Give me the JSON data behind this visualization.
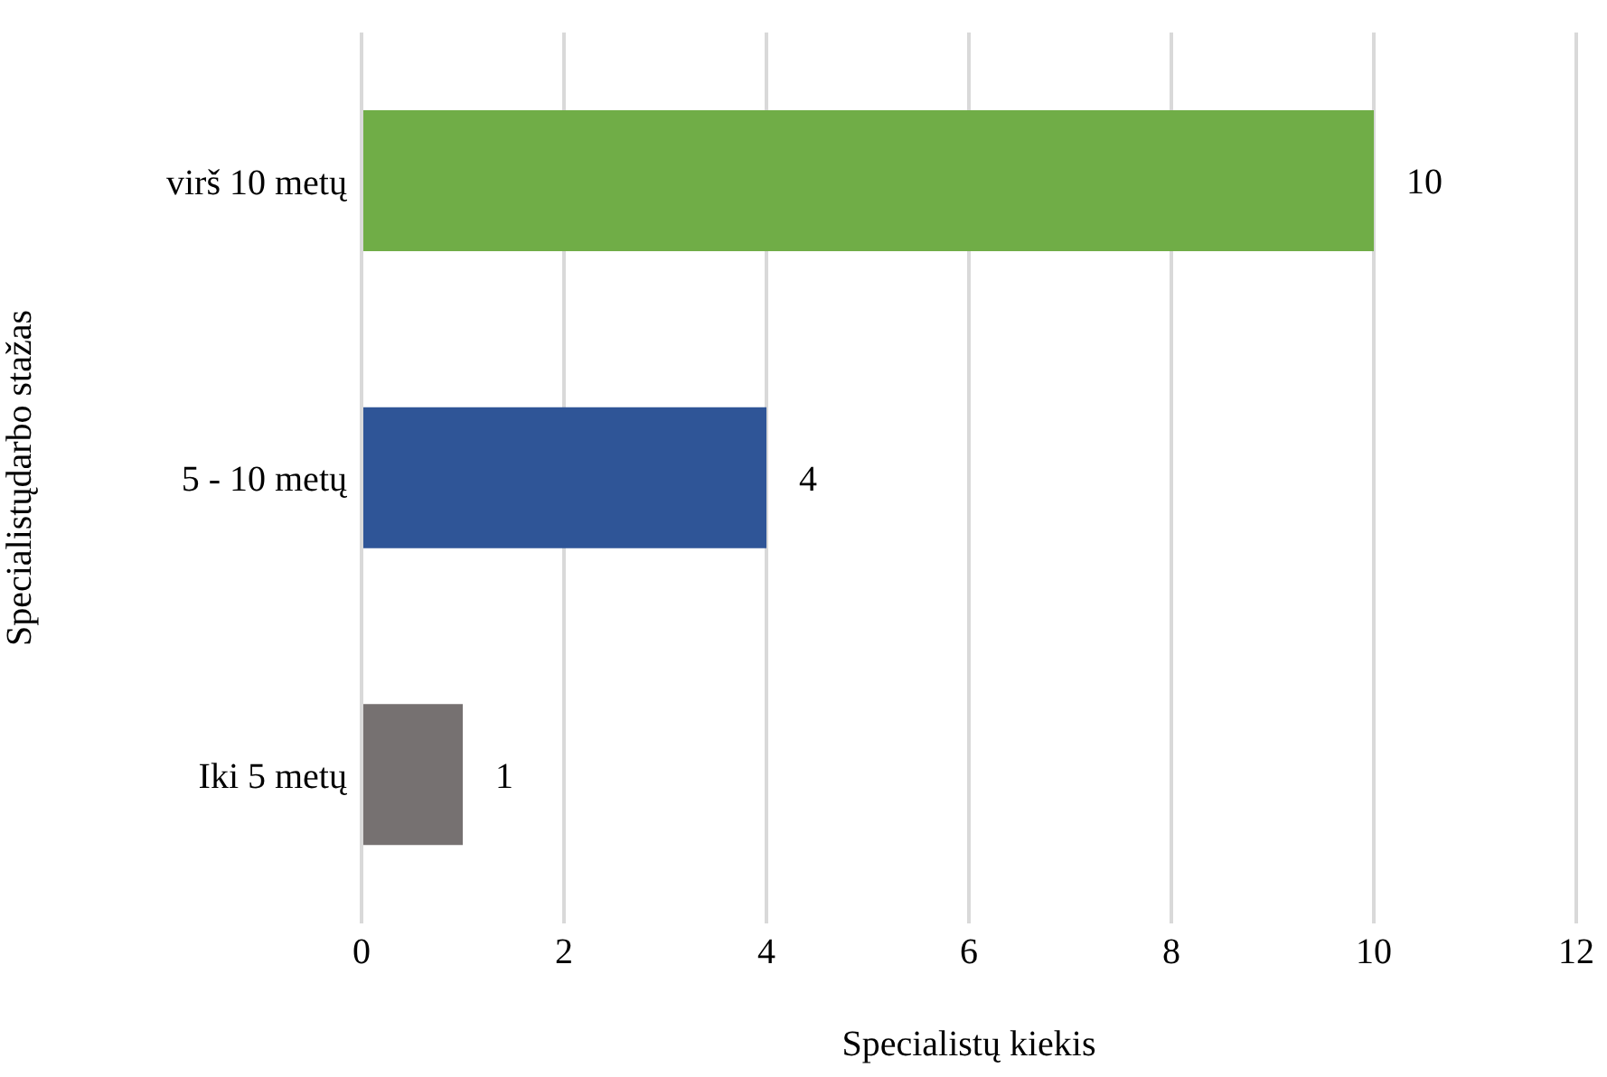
{
  "chart_data": {
    "type": "bar",
    "orientation": "horizontal",
    "xlabel": "Specialistų kiekis",
    "ylabel": "Specialistųdarbo stažas",
    "categories": [
      "virš 10 metų",
      "5 - 10 metų",
      "Iki 5 metų"
    ],
    "values": [
      10,
      4,
      1
    ],
    "colors": [
      "#70ad47",
      "#2f5597",
      "#767171"
    ],
    "xlim": [
      0,
      12
    ],
    "xticks": [
      0,
      2,
      4,
      6,
      8,
      10,
      12
    ],
    "grid": "x",
    "data_labels": true
  }
}
